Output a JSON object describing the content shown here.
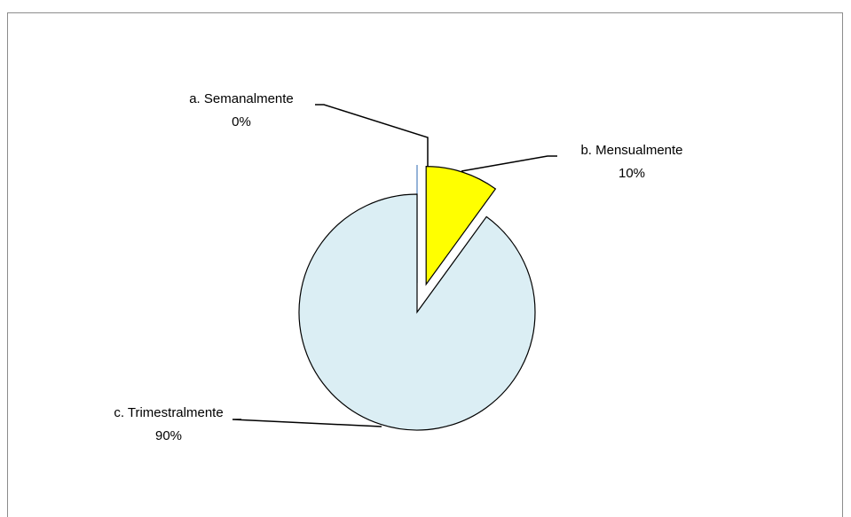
{
  "chart_data": {
    "type": "pie",
    "categories": [
      "a. Semanalmente",
      "b. Mensualmente",
      "c. Trimestralmente"
    ],
    "values": [
      0,
      10,
      90
    ],
    "value_labels": [
      "0%",
      "10%",
      "90%"
    ],
    "colors": [
      "#4f81bd",
      "#ffff00",
      "#dbeef4"
    ]
  }
}
